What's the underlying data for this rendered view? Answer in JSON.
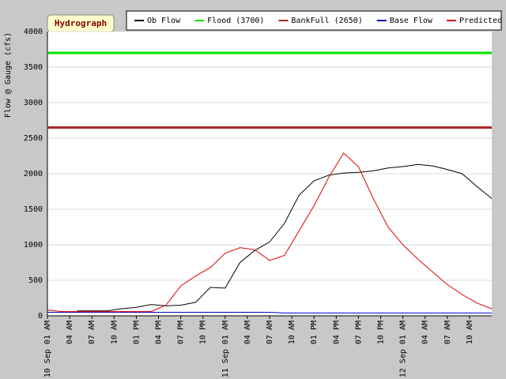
{
  "chart_data": {
    "type": "line",
    "title": "Hydrograph",
    "ylabel": "Flow @ Gauge (cfs)",
    "x": [
      0,
      2,
      4,
      6,
      8,
      10,
      12,
      14,
      16,
      18,
      20,
      22,
      24,
      26,
      28,
      30,
      32,
      34,
      36,
      38,
      40,
      42,
      44,
      46,
      48,
      50,
      52,
      54,
      56,
      58,
      60
    ],
    "xlim": [
      0,
      60
    ],
    "xticks": [
      {
        "value": 0,
        "label": "10 Sep 01 AM"
      },
      {
        "value": 3,
        "label": "04 AM"
      },
      {
        "value": 6,
        "label": "07 AM"
      },
      {
        "value": 9,
        "label": "10 AM"
      },
      {
        "value": 12,
        "label": "01 PM"
      },
      {
        "value": 15,
        "label": "04 PM"
      },
      {
        "value": 18,
        "label": "07 PM"
      },
      {
        "value": 21,
        "label": "10 PM"
      },
      {
        "value": 24,
        "label": "11 Sep 01 AM"
      },
      {
        "value": 27,
        "label": "04 AM"
      },
      {
        "value": 30,
        "label": "07 AM"
      },
      {
        "value": 33,
        "label": "10 AM"
      },
      {
        "value": 36,
        "label": "01 PM"
      },
      {
        "value": 39,
        "label": "04 PM"
      },
      {
        "value": 42,
        "label": "07 PM"
      },
      {
        "value": 45,
        "label": "10 PM"
      },
      {
        "value": 48,
        "label": "12 Sep 01 AM"
      },
      {
        "value": 51,
        "label": "04 AM"
      },
      {
        "value": 54,
        "label": "07 AM"
      },
      {
        "value": 57,
        "label": "10 AM"
      }
    ],
    "ylim": [
      0,
      4000
    ],
    "yticks": [
      0,
      500,
      1000,
      1500,
      2000,
      2500,
      3000,
      3500,
      4000
    ],
    "grid": true,
    "series": [
      {
        "name": "Ob Flow",
        "color": "#000000",
        "values": [
          null,
          null,
          70,
          70,
          70,
          100,
          120,
          160,
          140,
          150,
          190,
          400,
          390,
          750,
          920,
          1040,
          1300,
          1700,
          1900,
          1980,
          2010,
          2020,
          2040,
          2080,
          2100,
          2130,
          2110,
          2060,
          2000,
          1820,
          1650
        ]
      },
      {
        "name": "Flood (3700)",
        "color": "#00e000",
        "values": [
          3700,
          3700,
          3700,
          3700,
          3700,
          3700,
          3700,
          3700,
          3700,
          3700,
          3700,
          3700,
          3700,
          3700,
          3700,
          3700,
          3700,
          3700,
          3700,
          3700,
          3700,
          3700,
          3700,
          3700,
          3700,
          3700,
          3700,
          3700,
          3700,
          3700,
          3700
        ]
      },
      {
        "name": "BankFull (2650)",
        "color": "#a52a2a",
        "values": [
          2650,
          2650,
          2650,
          2650,
          2650,
          2650,
          2650,
          2650,
          2650,
          2650,
          2650,
          2650,
          2650,
          2650,
          2650,
          2650,
          2650,
          2650,
          2650,
          2650,
          2650,
          2650,
          2650,
          2650,
          2650,
          2650,
          2650,
          2650,
          2650,
          2650,
          2650
        ]
      },
      {
        "name": "Base Flow",
        "color": "#0000cc",
        "values": [
          50,
          50,
          50,
          50,
          50,
          50,
          50,
          50,
          50,
          50,
          50,
          50,
          50,
          50,
          50,
          50,
          40,
          40,
          40,
          40,
          40,
          40,
          40,
          40,
          40,
          40,
          40,
          40,
          40,
          40,
          40
        ]
      },
      {
        "name": "Predicted Flow",
        "color": "#e00000",
        "values": [
          80,
          60,
          60,
          60,
          60,
          60,
          60,
          60,
          150,
          420,
          560,
          680,
          880,
          960,
          930,
          780,
          850,
          1200,
          1550,
          1950,
          2290,
          2100,
          1650,
          1250,
          1000,
          800,
          620,
          440,
          300,
          180,
          100
        ]
      }
    ]
  }
}
